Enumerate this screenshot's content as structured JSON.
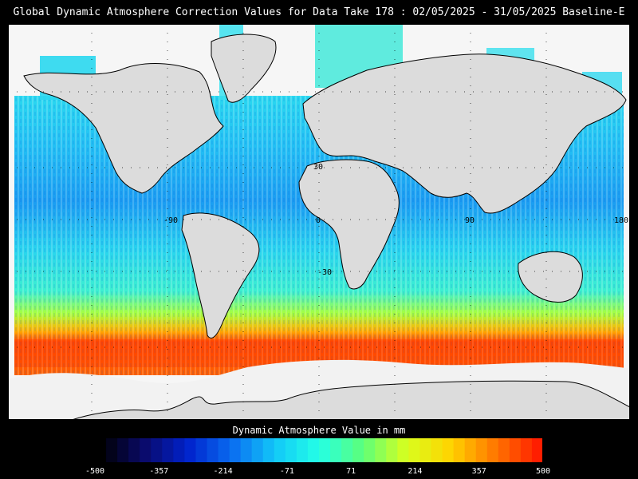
{
  "title": "Global Dynamic Atmosphere Correction Values for Data Take 178 : 02/05/2025 - 31/05/2025 Baseline-E",
  "colorbar": {
    "label": "Dynamic Atmosphere Value in mm",
    "ticks": [
      "-500",
      "-357",
      "-214",
      "-71",
      "71",
      "214",
      "357",
      "500"
    ],
    "range": [
      -500,
      500
    ],
    "colors": [
      "#000000",
      "#0a0a6a",
      "#0022cc",
      "#0a6cf0",
      "#12c8f8",
      "#24ffe6",
      "#5cff7a",
      "#d8ff1e",
      "#ffd400",
      "#ff7a00",
      "#ff1e00"
    ]
  },
  "map": {
    "lat_labels": [
      "30",
      "-30"
    ],
    "lon_labels": [
      "-90",
      "0",
      "90",
      "180"
    ],
    "land_color": "#dcdcdc",
    "nodata_color": "#f6f6f6"
  }
}
